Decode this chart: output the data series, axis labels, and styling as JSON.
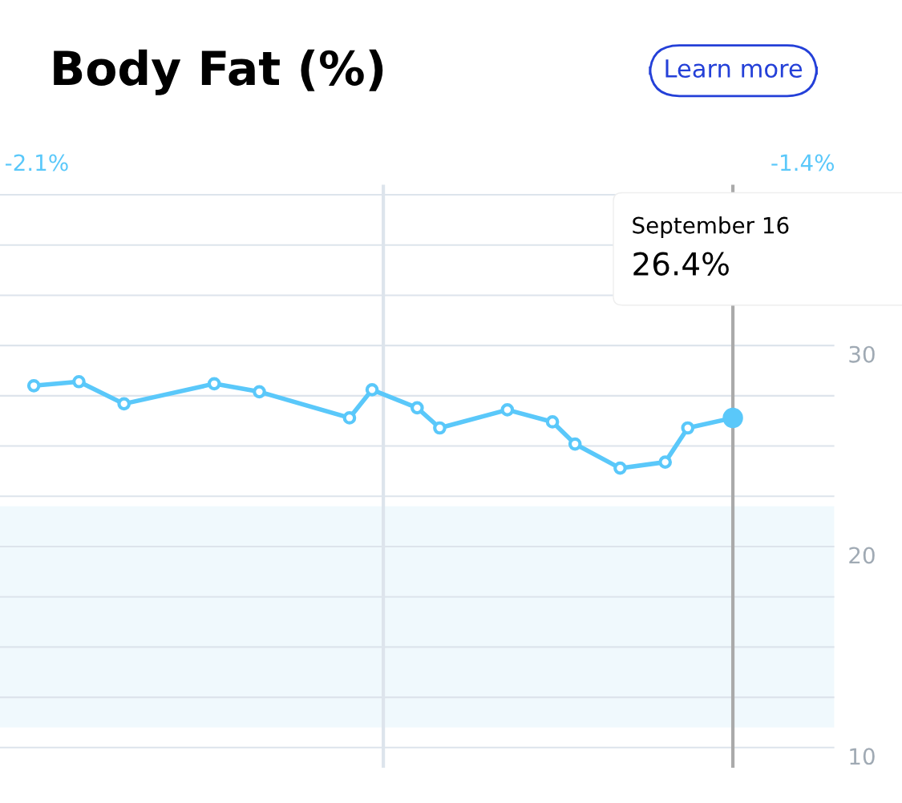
{
  "chart_data": {
    "type": "line",
    "title": "Body Fat (%)",
    "categories": [
      null,
      null,
      null,
      null,
      null,
      null,
      null,
      null,
      null,
      null,
      null,
      null,
      null,
      null,
      null,
      null,
      null,
      null,
      null,
      null,
      null,
      null,
      null,
      null,
      null,
      null,
      null,
      null,
      null,
      null,
      null,
      null,
      null,
      null,
      null,
      null,
      null
    ],
    "series": [
      {
        "color": "#5ac8fa",
        "values": [
          null,
          28.0,
          null,
          28.2,
          null,
          27.1,
          null,
          null,
          null,
          28.1,
          null,
          27.7,
          null,
          null,
          null,
          26.4,
          27.8,
          null,
          26.9,
          25.9,
          null,
          null,
          26.8,
          null,
          26.2,
          25.1,
          null,
          23.9,
          null,
          24.2,
          25.9,
          null,
          26.4,
          null,
          null,
          null,
          null
        ]
      }
    ],
    "marker": "circle",
    "line_style": "solid",
    "ylim": [
      9,
      38
    ],
    "yticks": [
      10,
      {
        "value": 12.5,
        "label": null
      },
      {
        "value": 15,
        "label": null
      },
      {
        "value": 17.5,
        "label": null
      },
      20,
      {
        "value": 22.5,
        "label": null
      },
      {
        "value": 25,
        "label": null
      },
      {
        "value": 27.5,
        "label": null
      },
      30,
      {
        "value": 32.5,
        "label": null
      },
      {
        "value": 35,
        "label": null
      },
      {
        "value": 37.5,
        "label": null
      }
    ],
    "tick_labels": "y",
    "grid": "y",
    "bands": [
      {
        "axis": "y",
        "from": 11,
        "to": 22,
        "color": "#f0f9fd"
      }
    ],
    "annotations": [
      "Learn more",
      "-2.1%",
      "-1.4%",
      "September 16",
      "26.4%"
    ]
  }
}
